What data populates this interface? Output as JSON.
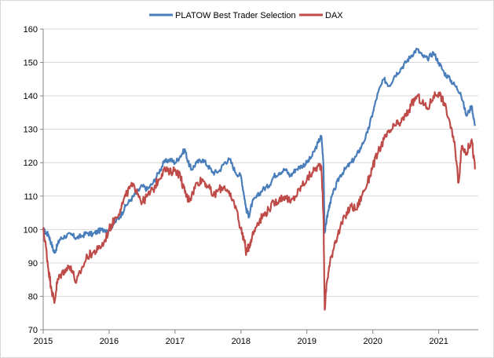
{
  "chart_data": {
    "type": "line",
    "title": "",
    "xlabel": "",
    "ylabel": "",
    "xlim": [
      2015.0,
      2021.6
    ],
    "ylim": [
      70,
      160
    ],
    "x_ticks": [
      2015,
      2016,
      2017,
      2018,
      2019,
      2020,
      2021
    ],
    "x_tick_labels": [
      "2015",
      "2016",
      "2017",
      "2018",
      "2019",
      "2020",
      "2021"
    ],
    "y_ticks": [
      70,
      80,
      90,
      100,
      110,
      120,
      130,
      140,
      150,
      160
    ],
    "y_tick_labels": [
      "70",
      "80",
      "90",
      "100",
      "110",
      "120",
      "130",
      "140",
      "150",
      "160"
    ],
    "grid": "horizontal",
    "legend_position": "top",
    "series": [
      {
        "name": "PLATOW Best Trader Selection",
        "color": "#4a7ebb",
        "points": [
          [
            2015.0,
            100
          ],
          [
            2015.04,
            99
          ],
          [
            2015.08,
            98.5
          ],
          [
            2015.12,
            96
          ],
          [
            2015.17,
            93
          ],
          [
            2015.21,
            95
          ],
          [
            2015.25,
            97
          ],
          [
            2015.33,
            98
          ],
          [
            2015.42,
            98.5
          ],
          [
            2015.5,
            97.5
          ],
          [
            2015.58,
            98
          ],
          [
            2015.67,
            99
          ],
          [
            2015.75,
            98.5
          ],
          [
            2015.83,
            99.5
          ],
          [
            2015.92,
            100
          ],
          [
            2016.0,
            100
          ],
          [
            2016.04,
            101
          ],
          [
            2016.08,
            102
          ],
          [
            2016.17,
            104
          ],
          [
            2016.25,
            107
          ],
          [
            2016.33,
            109
          ],
          [
            2016.42,
            111
          ],
          [
            2016.5,
            113
          ],
          [
            2016.58,
            112
          ],
          [
            2016.67,
            114
          ],
          [
            2016.75,
            117
          ],
          [
            2016.83,
            120
          ],
          [
            2016.92,
            121
          ],
          [
            2017.0,
            120
          ],
          [
            2017.08,
            122
          ],
          [
            2017.15,
            124
          ],
          [
            2017.2,
            120
          ],
          [
            2017.25,
            118
          ],
          [
            2017.33,
            120
          ],
          [
            2017.42,
            121
          ],
          [
            2017.5,
            119
          ],
          [
            2017.58,
            117
          ],
          [
            2017.67,
            117.5
          ],
          [
            2017.75,
            120
          ],
          [
            2017.83,
            121
          ],
          [
            2017.92,
            117
          ],
          [
            2018.0,
            116
          ],
          [
            2018.05,
            110
          ],
          [
            2018.08,
            106
          ],
          [
            2018.12,
            104
          ],
          [
            2018.17,
            108
          ],
          [
            2018.25,
            110
          ],
          [
            2018.33,
            112
          ],
          [
            2018.42,
            113
          ],
          [
            2018.5,
            116
          ],
          [
            2018.58,
            117
          ],
          [
            2018.67,
            118
          ],
          [
            2018.75,
            116
          ],
          [
            2018.83,
            118
          ],
          [
            2018.92,
            119
          ],
          [
            2019.0,
            120
          ],
          [
            2019.08,
            122
          ],
          [
            2019.17,
            126
          ],
          [
            2019.22,
            128
          ],
          [
            2019.25,
            120
          ],
          [
            2019.27,
            99
          ],
          [
            2019.3,
            103
          ],
          [
            2019.35,
            108
          ],
          [
            2019.42,
            112
          ],
          [
            2019.5,
            116
          ],
          [
            2019.58,
            118
          ],
          [
            2019.67,
            120
          ],
          [
            2019.75,
            122
          ],
          [
            2019.83,
            125
          ],
          [
            2019.92,
            129
          ],
          [
            2020.0,
            135
          ],
          [
            2020.08,
            141
          ],
          [
            2020.17,
            145
          ],
          [
            2020.25,
            143
          ],
          [
            2020.33,
            146
          ],
          [
            2020.42,
            148
          ],
          [
            2020.5,
            150
          ],
          [
            2020.58,
            152
          ],
          [
            2020.67,
            154
          ],
          [
            2020.75,
            152
          ],
          [
            2020.83,
            151
          ],
          [
            2020.92,
            153
          ],
          [
            2021.0,
            150
          ],
          [
            2021.08,
            147
          ],
          [
            2021.17,
            145
          ],
          [
            2021.25,
            143
          ],
          [
            2021.33,
            141
          ],
          [
            2021.42,
            134
          ],
          [
            2021.5,
            137
          ],
          [
            2021.55,
            131
          ]
        ]
      },
      {
        "name": "DAX",
        "color": "#be4b48",
        "points": [
          [
            2015.0,
            100
          ],
          [
            2015.04,
            95
          ],
          [
            2015.08,
            88
          ],
          [
            2015.12,
            83
          ],
          [
            2015.17,
            78
          ],
          [
            2015.21,
            84
          ],
          [
            2015.25,
            86
          ],
          [
            2015.33,
            88
          ],
          [
            2015.42,
            89
          ],
          [
            2015.5,
            84
          ],
          [
            2015.58,
            88
          ],
          [
            2015.67,
            92
          ],
          [
            2015.75,
            93
          ],
          [
            2015.83,
            94
          ],
          [
            2015.92,
            96
          ],
          [
            2016.0,
            100
          ],
          [
            2016.08,
            103
          ],
          [
            2016.17,
            106
          ],
          [
            2016.25,
            110
          ],
          [
            2016.33,
            113
          ],
          [
            2016.42,
            112
          ],
          [
            2016.5,
            108
          ],
          [
            2016.58,
            110
          ],
          [
            2016.67,
            112
          ],
          [
            2016.75,
            115
          ],
          [
            2016.83,
            118
          ],
          [
            2016.92,
            117
          ],
          [
            2017.0,
            118
          ],
          [
            2017.08,
            116
          ],
          [
            2017.15,
            111
          ],
          [
            2017.2,
            109
          ],
          [
            2017.25,
            110
          ],
          [
            2017.33,
            114
          ],
          [
            2017.42,
            115
          ],
          [
            2017.5,
            113
          ],
          [
            2017.58,
            110
          ],
          [
            2017.67,
            112
          ],
          [
            2017.75,
            113
          ],
          [
            2017.83,
            110
          ],
          [
            2017.92,
            107
          ],
          [
            2018.0,
            100
          ],
          [
            2018.05,
            97
          ],
          [
            2018.08,
            93
          ],
          [
            2018.12,
            95
          ],
          [
            2018.17,
            98
          ],
          [
            2018.25,
            102
          ],
          [
            2018.33,
            104
          ],
          [
            2018.42,
            106
          ],
          [
            2018.5,
            108
          ],
          [
            2018.58,
            109
          ],
          [
            2018.67,
            110
          ],
          [
            2018.75,
            108
          ],
          [
            2018.83,
            110
          ],
          [
            2018.92,
            113
          ],
          [
            2019.0,
            115
          ],
          [
            2019.08,
            117
          ],
          [
            2019.17,
            119
          ],
          [
            2019.22,
            119
          ],
          [
            2019.25,
            105
          ],
          [
            2019.27,
            76
          ],
          [
            2019.3,
            84
          ],
          [
            2019.35,
            90
          ],
          [
            2019.42,
            96
          ],
          [
            2019.5,
            100
          ],
          [
            2019.58,
            104
          ],
          [
            2019.67,
            107
          ],
          [
            2019.75,
            106
          ],
          [
            2019.83,
            110
          ],
          [
            2019.92,
            114
          ],
          [
            2020.0,
            119
          ],
          [
            2020.08,
            123
          ],
          [
            2020.17,
            127
          ],
          [
            2020.25,
            129
          ],
          [
            2020.33,
            131
          ],
          [
            2020.42,
            132
          ],
          [
            2020.5,
            134
          ],
          [
            2020.58,
            137
          ],
          [
            2020.67,
            140
          ],
          [
            2020.75,
            138
          ],
          [
            2020.83,
            136
          ],
          [
            2020.92,
            140
          ],
          [
            2021.0,
            141
          ],
          [
            2021.08,
            138
          ],
          [
            2021.17,
            132
          ],
          [
            2021.25,
            124
          ],
          [
            2021.3,
            114
          ],
          [
            2021.35,
            125
          ],
          [
            2021.42,
            123
          ],
          [
            2021.5,
            127
          ],
          [
            2021.55,
            118
          ]
        ]
      }
    ]
  }
}
